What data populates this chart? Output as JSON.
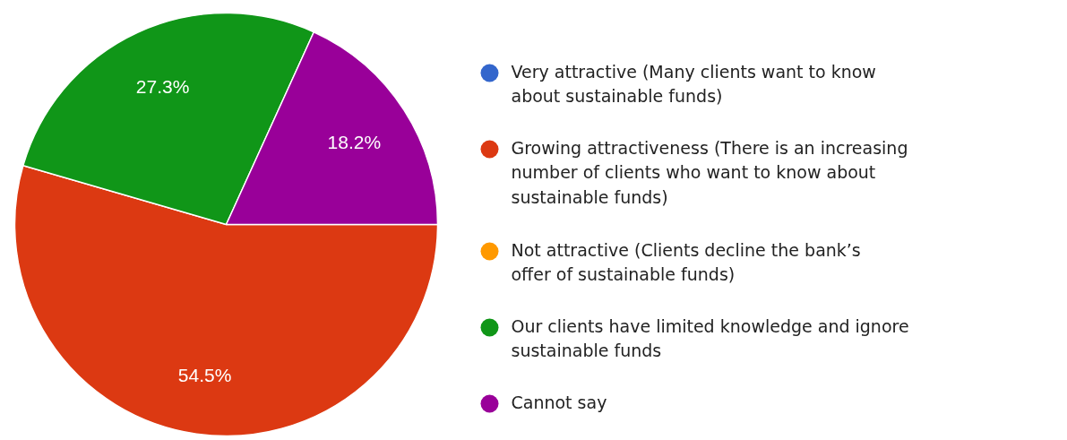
{
  "chart_data": {
    "type": "pie",
    "categories": [
      "Very attractive (Many clients want to know about sustainable funds)",
      "Growing attractiveness (There is an increasing number of clients who want to know about sustainable funds)",
      "Not attractive (Clients decline the bank’s offer of sustainable funds)",
      "Our clients have limited knowledge and ignore sustainable funds",
      "Cannot say"
    ],
    "values": [
      0,
      54.5,
      0,
      27.3,
      18.2
    ],
    "colors": [
      "#3366cc",
      "#dc3912",
      "#ff9900",
      "#109618",
      "#990099"
    ],
    "value_labels": [
      null,
      "54.5%",
      null,
      "27.3%",
      "18.2%"
    ],
    "legend": "right"
  }
}
